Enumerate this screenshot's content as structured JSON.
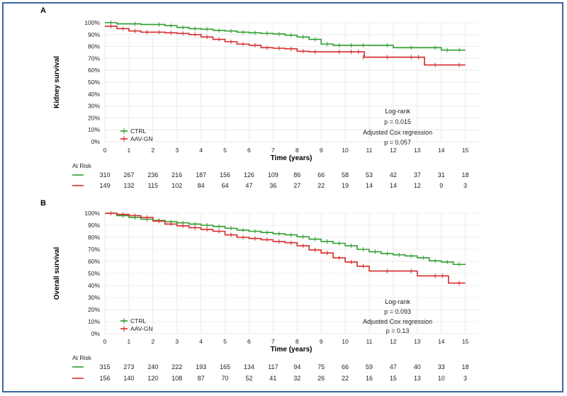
{
  "colors": {
    "ctrl": "#2e9e2e",
    "aav": "#d62a2a",
    "frame": "#3a66a8",
    "grid": "#e6e6e6"
  },
  "chart_data": [
    {
      "type": "line",
      "panel_label": "A",
      "ylabel": "Kidney survival",
      "xlabel": "Time (years)",
      "x_ticks": [
        "0",
        "1",
        "2",
        "3",
        "4",
        "5",
        "6",
        "7",
        "8",
        "9",
        "10",
        "11",
        "12",
        "13",
        "14",
        "15"
      ],
      "y_ticks": [
        "0%",
        "10%",
        "20%",
        "30%",
        "40%",
        "50%",
        "60%",
        "70%",
        "80%",
        "90%",
        "100%"
      ],
      "xlim": [
        0,
        15
      ],
      "ylim": [
        0,
        100
      ],
      "grid": true,
      "legend_position": "bottom-left",
      "series": [
        {
          "name": "CTRL",
          "color_key": "ctrl",
          "x": [
            0,
            0.5,
            1.5,
            2.5,
            3,
            3.5,
            4,
            4.5,
            5,
            5.5,
            6,
            6.5,
            7,
            7.5,
            8,
            8.5,
            9,
            9.5,
            10,
            10.5,
            11,
            12,
            13,
            14,
            14.5,
            15
          ],
          "y": [
            100,
            99,
            98.5,
            97.5,
            96,
            95,
            94.5,
            93.5,
            93,
            92,
            91.5,
            91,
            90.5,
            89.5,
            88,
            86,
            82,
            81,
            81,
            81,
            81,
            79,
            79,
            77,
            77,
            77
          ]
        },
        {
          "name": "AAV-GN",
          "color_key": "aav",
          "x": [
            0,
            0.5,
            1,
            1.5,
            2,
            2.5,
            3,
            3.5,
            4,
            4.5,
            5,
            5.5,
            6,
            6.5,
            7,
            7.5,
            8,
            8.5,
            9,
            10,
            10.5,
            10.8,
            11,
            12,
            13,
            13.3,
            14,
            15
          ],
          "y": [
            97,
            95,
            93,
            92,
            92,
            91.5,
            91,
            90,
            88,
            86,
            84,
            82,
            81,
            79,
            78.5,
            78,
            76,
            75.5,
            75.5,
            75.5,
            75.5,
            71,
            71,
            71,
            71,
            64.5,
            64.5,
            64.5
          ]
        }
      ],
      "annotations": [
        "Log-rank",
        "p = 0.015",
        "Adjusted Cox regression",
        "p = 0.057"
      ],
      "risk_table": {
        "title": "At Risk",
        "rows": [
          {
            "color_key": "ctrl",
            "values": [
              "310",
              "267",
              "236",
              "216",
              "187",
              "156",
              "126",
              "109",
              "86",
              "66",
              "58",
              "53",
              "42",
              "37",
              "31",
              "18"
            ]
          },
          {
            "color_key": "aav",
            "values": [
              "149",
              "132",
              "115",
              "102",
              "84",
              "64",
              "47",
              "36",
              "27",
              "22",
              "19",
              "14",
              "14",
              "12",
              "9",
              "3"
            ]
          }
        ]
      }
    },
    {
      "type": "line",
      "panel_label": "B",
      "ylabel": "Overall survival",
      "xlabel": "Time (years)",
      "x_ticks": [
        "0",
        "1",
        "2",
        "3",
        "4",
        "5",
        "6",
        "7",
        "8",
        "9",
        "10",
        "11",
        "12",
        "13",
        "14",
        "15"
      ],
      "y_ticks": [
        "0%",
        "10%",
        "20%",
        "30%",
        "40%",
        "50%",
        "60%",
        "70%",
        "80%",
        "90%",
        "100%"
      ],
      "xlim": [
        0,
        15
      ],
      "ylim": [
        0,
        100
      ],
      "grid": true,
      "legend_position": "bottom-left",
      "series": [
        {
          "name": "CTRL",
          "color_key": "ctrl",
          "x": [
            0,
            0.5,
            1,
            1.5,
            2,
            2.5,
            3,
            3.5,
            4,
            4.5,
            5,
            5.5,
            6,
            6.5,
            7,
            7.5,
            8,
            8.5,
            9,
            9.5,
            10,
            10.5,
            11,
            11.5,
            12,
            12.5,
            13,
            13.5,
            14,
            14.5,
            15
          ],
          "y": [
            100,
            98,
            96.5,
            95,
            94,
            93,
            92,
            91,
            90,
            89,
            87.5,
            86,
            85,
            84,
            83,
            82,
            80.5,
            78.5,
            76.5,
            75,
            73,
            70,
            68,
            66.5,
            65.5,
            64.5,
            63,
            60.5,
            59.5,
            57.5,
            57
          ]
        },
        {
          "name": "AAV-GN",
          "color_key": "aav",
          "x": [
            0,
            0.5,
            1,
            1.5,
            2,
            2.5,
            3,
            3.5,
            4,
            4.5,
            5,
            5.5,
            6,
            6.5,
            7,
            7.5,
            8,
            8.5,
            9,
            9.5,
            10,
            10.5,
            11,
            12,
            13,
            14,
            14.3,
            15
          ],
          "y": [
            100,
            99,
            98,
            96.5,
            93.5,
            91,
            89.5,
            88,
            86.5,
            85,
            82,
            80,
            79,
            78,
            76.5,
            75.5,
            73,
            69.5,
            67,
            63,
            59.5,
            56,
            52,
            52,
            48,
            48,
            42,
            42
          ]
        }
      ],
      "annotations": [
        "Log-rank",
        "p = 0.093",
        "Adjusted Cox regression",
        "p = 0.13"
      ],
      "risk_table": {
        "title": "At Risk",
        "rows": [
          {
            "color_key": "ctrl",
            "values": [
              "315",
              "273",
              "240",
              "222",
              "193",
              "165",
              "134",
              "117",
              "94",
              "75",
              "66",
              "59",
              "47",
              "40",
              "33",
              "18"
            ]
          },
          {
            "color_key": "aav",
            "values": [
              "156",
              "140",
              "120",
              "108",
              "87",
              "70",
              "52",
              "41",
              "32",
              "26",
              "22",
              "16",
              "15",
              "13",
              "10",
              "3"
            ]
          }
        ]
      }
    }
  ]
}
